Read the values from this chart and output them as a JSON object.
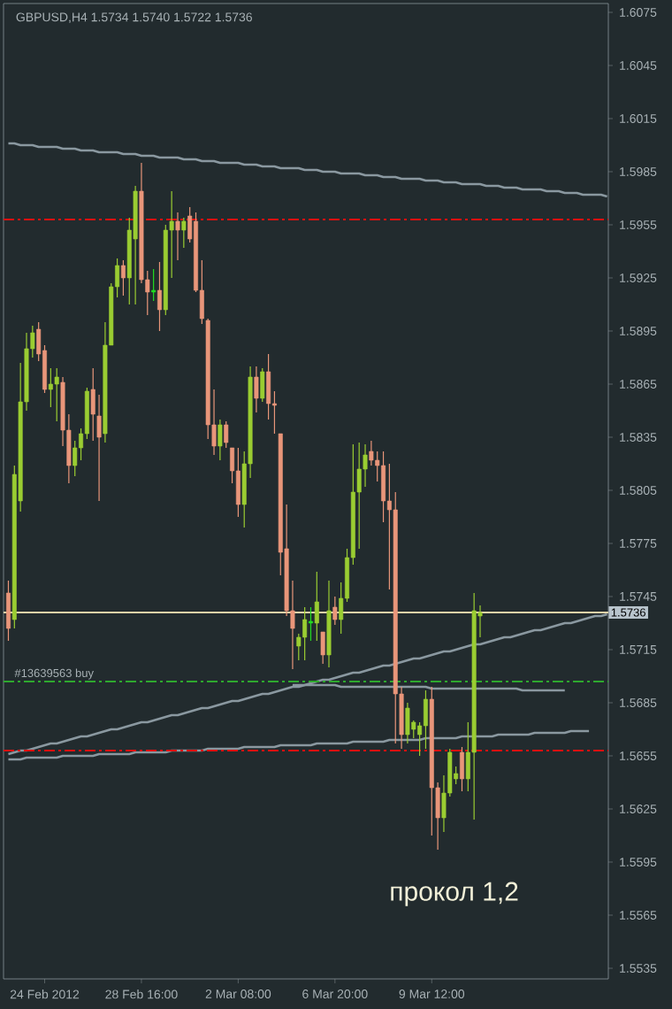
{
  "chart_data": {
    "type": "candlestick",
    "title": "GBPUSD,H4  1.5734 1.5740 1.5722 1.5736",
    "categories": [
      null,
      null,
      null,
      null,
      null,
      null,
      "24 Feb 2012",
      null,
      null,
      null,
      null,
      null,
      null,
      null,
      null,
      null,
      null,
      null,
      null,
      null,
      null,
      null,
      "28 Feb 16:00",
      null,
      null,
      null,
      null,
      null,
      null,
      null,
      null,
      null,
      null,
      null,
      null,
      null,
      null,
      null,
      "2 Mar 08:00",
      null,
      null,
      null,
      null,
      null,
      null,
      null,
      null,
      null,
      null,
      null,
      null,
      null,
      null,
      null,
      "6 Mar 20:00",
      null,
      null,
      null,
      null,
      null,
      null,
      null,
      null,
      null,
      null,
      null,
      null,
      null,
      null,
      null,
      "9 Mar 12:00",
      null,
      null,
      null,
      null,
      null,
      null,
      null,
      null,
      null,
      null,
      null,
      null,
      null,
      null,
      null,
      null,
      null,
      null,
      null,
      null,
      null,
      null,
      null,
      null,
      null,
      null,
      null,
      null,
      null
    ],
    "ohlc": [
      [
        1.5747,
        1.5754,
        1.572,
        1.5727
      ],
      [
        1.5732,
        1.5819,
        1.5727,
        1.5814
      ],
      [
        1.5799,
        1.5877,
        1.5793,
        1.5855
      ],
      [
        1.5855,
        1.5894,
        1.585,
        1.5885
      ],
      [
        1.5885,
        1.5898,
        1.588,
        1.5894
      ],
      [
        1.5896,
        1.59,
        1.5878,
        1.5882
      ],
      [
        1.5884,
        1.5887,
        1.586,
        1.5862
      ],
      [
        1.5862,
        1.5874,
        1.5852,
        1.5865
      ],
      [
        1.5865,
        1.5874,
        1.5844,
        1.5869
      ],
      [
        1.5866,
        1.5869,
        1.583,
        1.5839
      ],
      [
        1.5839,
        1.5848,
        1.5809,
        1.5819
      ],
      [
        1.5819,
        1.5833,
        1.5813,
        1.5829
      ],
      [
        1.5829,
        1.584,
        1.5822,
        1.5837
      ],
      [
        1.5837,
        1.5863,
        1.5834,
        1.5861
      ],
      [
        1.5862,
        1.5874,
        1.5833,
        1.5848
      ],
      [
        1.5847,
        1.5859,
        1.5799,
        1.5835
      ],
      [
        1.5837,
        1.59,
        1.5832,
        1.5887
      ],
      [
        1.5887,
        1.5922,
        1.5887,
        1.592
      ],
      [
        1.592,
        1.5936,
        1.5914,
        1.5932
      ],
      [
        1.5932,
        1.5935,
        1.5915,
        1.5925
      ],
      [
        1.5925,
        1.5959,
        1.591,
        1.5952
      ],
      [
        1.5947,
        1.5977,
        1.591,
        1.5974
      ],
      [
        1.5974,
        1.599,
        1.5922,
        1.5924
      ],
      [
        1.5924,
        1.5929,
        1.5904,
        1.5917
      ],
      [
        1.5917,
        1.593,
        1.5912,
        1.5918
      ],
      [
        1.5918,
        1.5934,
        1.5895,
        1.5907
      ],
      [
        1.5907,
        1.5955,
        1.5904,
        1.5952
      ],
      [
        1.5952,
        1.5974,
        1.5925,
        1.5957
      ],
      [
        1.5957,
        1.5962,
        1.5935,
        1.5952
      ],
      [
        1.5952,
        1.5959,
        1.5942,
        1.5957
      ],
      [
        1.596,
        1.5965,
        1.5945,
        1.5947
      ],
      [
        1.5957,
        1.5962,
        1.5917,
        1.5918
      ],
      [
        1.5918,
        1.5935,
        1.5899,
        1.5902
      ],
      [
        1.5901,
        1.5902,
        1.5834,
        1.5842
      ],
      [
        1.5842,
        1.5862,
        1.5825,
        1.583
      ],
      [
        1.583,
        1.5845,
        1.5822,
        1.5842
      ],
      [
        1.5842,
        1.5844,
        1.5829,
        1.5832
      ],
      [
        1.5829,
        1.5829,
        1.5809,
        1.5816
      ],
      [
        1.5816,
        1.5829,
        1.579,
        1.5797
      ],
      [
        1.5797,
        1.5827,
        1.5784,
        1.582
      ],
      [
        1.582,
        1.5875,
        1.5812,
        1.5869
      ],
      [
        1.5869,
        1.5875,
        1.5849,
        1.5857
      ],
      [
        1.5857,
        1.5874,
        1.5855,
        1.5872
      ],
      [
        1.5872,
        1.5882,
        1.5845,
        1.5854
      ],
      [
        1.5854,
        1.5861,
        1.5837,
        1.5853
      ],
      [
        1.5837,
        1.5837,
        1.5757,
        1.577
      ],
      [
        1.5772,
        1.5797,
        1.5734,
        1.5737
      ],
      [
        1.5737,
        1.5754,
        1.5704,
        1.5727
      ],
      [
        1.5717,
        1.5724,
        1.5709,
        1.5722
      ],
      [
        1.5722,
        1.5739,
        1.5709,
        1.5732
      ],
      [
        1.573,
        1.5739,
        1.572,
        1.5731
      ],
      [
        1.573,
        1.5759,
        1.572,
        1.5742
      ],
      [
        1.5725,
        1.5725,
        1.5707,
        1.5712
      ],
      [
        1.5712,
        1.5754,
        1.5705,
        1.5737
      ],
      [
        1.5739,
        1.5745,
        1.5729,
        1.5732
      ],
      [
        1.5732,
        1.5753,
        1.5724,
        1.5744
      ],
      [
        1.5744,
        1.5772,
        1.5742,
        1.5767
      ],
      [
        1.5767,
        1.5831,
        1.5763,
        1.5804
      ],
      [
        1.5804,
        1.5832,
        1.5772,
        1.5817
      ],
      [
        1.5817,
        1.5831,
        1.5807,
        1.5825
      ],
      [
        1.5827,
        1.5833,
        1.5819,
        1.5822
      ],
      [
        1.5822,
        1.5827,
        1.581,
        1.5819
      ],
      [
        1.5819,
        1.5827,
        1.5787,
        1.5799
      ],
      [
        1.5799,
        1.582,
        1.5749,
        1.5794
      ],
      [
        1.5794,
        1.5804,
        1.5662,
        1.569
      ],
      [
        1.569,
        1.5694,
        1.5659,
        1.5667
      ],
      [
        1.5667,
        1.5685,
        1.5662,
        1.5682
      ],
      [
        1.567,
        1.5675,
        1.5665,
        1.5674
      ],
      [
        1.5667,
        1.5674,
        1.5655,
        1.5672
      ],
      [
        1.5672,
        1.5692,
        1.5659,
        1.5687
      ],
      [
        1.5687,
        1.5694,
        1.561,
        1.5637
      ],
      [
        1.5637,
        1.564,
        1.5602,
        1.562
      ],
      [
        1.562,
        1.5644,
        1.5612,
        1.5634
      ],
      [
        1.5634,
        1.5659,
        1.5632,
        1.5657
      ],
      [
        1.5642,
        1.5649,
        1.5639,
        1.5645
      ],
      [
        1.5657,
        1.566,
        1.5635,
        1.5642
      ],
      [
        1.5642,
        1.5674,
        1.5635,
        1.5657
      ],
      [
        1.5657,
        1.5747,
        1.5619,
        1.5737
      ],
      [
        1.5734,
        1.574,
        1.5722,
        1.5736
      ],
      null,
      null,
      null,
      null,
      null,
      null,
      null,
      null,
      null,
      null,
      null,
      null,
      null,
      null,
      null,
      null,
      null,
      null,
      null,
      null,
      null
    ],
    "colors": [
      "#e9967a",
      "#9acd32",
      "#9acd32",
      "#9acd32",
      "#9acd32",
      "#e9967a",
      "#e9967a",
      "#9acd32",
      "#9acd32",
      "#e9967a",
      "#e9967a",
      "#9acd32",
      "#9acd32",
      "#9acd32",
      "#e9967a",
      "#e9967a",
      "#9acd32",
      "#9acd32",
      "#9acd32",
      "#e9967a",
      "#9acd32",
      "#9acd32",
      "#e9967a",
      "#e9967a",
      "#22dd22",
      "#e9967a",
      "#9acd32",
      "#9acd32",
      "#e9967a",
      "#9acd32",
      "#e9967a",
      "#e9967a",
      "#e9967a",
      "#e9967a",
      "#e9967a",
      "#9acd32",
      "#e9967a",
      "#e9967a",
      "#e9967a",
      "#9acd32",
      "#9acd32",
      "#e9967a",
      "#9acd32",
      "#e9967a",
      "#e9967a",
      "#e9967a",
      "#e9967a",
      "#e9967a",
      "#9acd32",
      "#9acd32",
      "#22dd22",
      "#9acd32",
      "#e9967a",
      "#9acd32",
      "#e9967a",
      "#9acd32",
      "#9acd32",
      "#9acd32",
      "#9acd32",
      "#9acd32",
      "#e9967a",
      "#e9967a",
      "#e9967a",
      "#e9967a",
      "#e9967a",
      "#e9967a",
      "#9acd32",
      "#9acd32",
      "#9acd32",
      "#9acd32",
      "#e9967a",
      "#e9967a",
      "#9acd32",
      "#9acd32",
      "#9acd32",
      "#e9967a",
      "#9acd32",
      "#9acd32",
      "#9acd32",
      null,
      null,
      null,
      null,
      null,
      null,
      null,
      null,
      null,
      null,
      null,
      null,
      null,
      null,
      null,
      null,
      null,
      null,
      null,
      null,
      null
    ],
    "series": [
      {
        "type": "line",
        "color": "#8a98a0",
        "values": [
          1.6001,
          1.6001,
          1.6,
          1.6,
          1.6,
          1.5999,
          1.5999,
          1.5999,
          1.5999,
          1.5998,
          1.5998,
          1.5998,
          1.5997,
          1.5997,
          1.5997,
          1.5996,
          1.5996,
          1.5996,
          1.5996,
          1.5995,
          1.5995,
          1.5995,
          1.5994,
          1.5994,
          1.5994,
          1.5993,
          1.5993,
          1.5993,
          1.5993,
          1.5992,
          1.5992,
          1.5992,
          1.5991,
          1.5991,
          1.5991,
          1.599,
          1.599,
          1.599,
          1.599,
          1.5989,
          1.5989,
          1.5989,
          1.5988,
          1.5988,
          1.5988,
          1.5987,
          1.5987,
          1.5987,
          1.5987,
          1.5986,
          1.5986,
          1.5986,
          1.5985,
          1.5985,
          1.5985,
          1.5984,
          1.5984,
          1.5984,
          1.5984,
          1.5983,
          1.5983,
          1.5983,
          1.5982,
          1.5982,
          1.5982,
          1.5981,
          1.5981,
          1.5981,
          1.5981,
          1.598,
          1.598,
          1.598,
          1.5979,
          1.5979,
          1.5979,
          1.5978,
          1.5978,
          1.5978,
          1.5978,
          1.5977,
          1.5977,
          1.5977,
          1.5976,
          1.5976,
          1.5976,
          1.5975,
          1.5975,
          1.5975,
          1.5975,
          1.5974,
          1.5974,
          1.5974,
          1.5973,
          1.5973,
          1.5973,
          1.5972,
          1.5972,
          1.5972,
          1.5972,
          1.5971
        ]
      },
      {
        "type": "line",
        "color": "#8a98a0",
        "values": [
          1.5656,
          1.5657,
          1.5658,
          1.5658,
          1.5659,
          1.566,
          1.5661,
          1.5662,
          1.5662,
          1.5663,
          1.5664,
          1.5665,
          1.5666,
          1.5666,
          1.5667,
          1.5668,
          1.5669,
          1.567,
          1.567,
          1.5671,
          1.5672,
          1.5673,
          1.5674,
          1.5674,
          1.5675,
          1.5676,
          1.5677,
          1.5678,
          1.5678,
          1.5679,
          1.568,
          1.5681,
          1.5682,
          1.5682,
          1.5683,
          1.5684,
          1.5685,
          1.5686,
          1.5686,
          1.5687,
          1.5688,
          1.5689,
          1.569,
          1.569,
          1.5691,
          1.5692,
          1.5693,
          1.5694,
          1.5694,
          1.5695,
          1.5696,
          1.5697,
          1.5698,
          1.5698,
          1.5699,
          1.57,
          1.5701,
          1.5702,
          1.5702,
          1.5703,
          1.5704,
          1.5705,
          1.5706,
          1.5706,
          1.5707,
          1.5708,
          1.5709,
          1.571,
          1.571,
          1.5711,
          1.5712,
          1.5713,
          1.5714,
          1.5714,
          1.5715,
          1.5716,
          1.5717,
          1.5718,
          1.5718,
          1.5719,
          1.572,
          1.5721,
          1.5722,
          1.5722,
          1.5723,
          1.5724,
          1.5725,
          1.5726,
          1.5726,
          1.5727,
          1.5728,
          1.5729,
          1.573,
          1.573,
          1.5731,
          1.5732,
          1.5733,
          1.5734,
          1.5734,
          1.5735
        ]
      },
      {
        "type": "line",
        "color": "#8a98a0",
        "values": [
          1.5653,
          1.5653,
          1.5653,
          1.5654,
          1.5654,
          1.5654,
          1.5654,
          1.5654,
          1.5654,
          1.5655,
          1.5655,
          1.5655,
          1.5655,
          1.5655,
          1.5655,
          1.5656,
          1.5656,
          1.5656,
          1.5656,
          1.5656,
          1.5656,
          1.5657,
          1.5657,
          1.5657,
          1.5657,
          1.5657,
          1.5657,
          1.5658,
          1.5658,
          1.5658,
          1.5658,
          1.5658,
          1.5658,
          1.5659,
          1.5659,
          1.5659,
          1.5659,
          1.5659,
          1.5659,
          1.566,
          1.566,
          1.566,
          1.566,
          1.566,
          1.566,
          1.5661,
          1.5661,
          1.5661,
          1.5661,
          1.5661,
          1.5661,
          1.5662,
          1.5662,
          1.5662,
          1.5662,
          1.5662,
          1.5662,
          1.5663,
          1.5663,
          1.5663,
          1.5663,
          1.5663,
          1.5663,
          1.5664,
          1.5664,
          1.5664,
          1.5664,
          1.5664,
          1.5664,
          1.5665,
          1.5665,
          1.5665,
          1.5665,
          1.5665,
          1.5665,
          1.5666,
          1.5666,
          1.5666,
          1.5666,
          1.5666,
          1.5666,
          1.5667,
          1.5667,
          1.5667,
          1.5667,
          1.5667,
          1.5667,
          1.5668,
          1.5668,
          1.5668,
          1.5668,
          1.5668,
          1.5668,
          1.5669,
          1.5669,
          1.5669,
          1.5669,
          null,
          null,
          null
        ]
      },
      {
        "type": "line",
        "color": "#8a98a0",
        "values": [
          null,
          null,
          null,
          null,
          null,
          null,
          null,
          null,
          null,
          null,
          null,
          null,
          null,
          null,
          null,
          null,
          null,
          null,
          null,
          null,
          null,
          null,
          null,
          null,
          null,
          null,
          null,
          null,
          null,
          null,
          null,
          null,
          null,
          null,
          null,
          null,
          null,
          null,
          null,
          null,
          null,
          null,
          null,
          null,
          null,
          null,
          null,
          1.5695,
          1.5695,
          1.5695,
          1.5695,
          1.5695,
          1.5695,
          1.5695,
          1.5695,
          1.5694,
          1.5694,
          1.5694,
          1.5694,
          1.5694,
          1.5694,
          1.5694,
          1.5694,
          1.5694,
          1.5694,
          1.5694,
          1.5694,
          1.5694,
          1.5694,
          1.5694,
          1.5693,
          1.5693,
          1.5693,
          1.5693,
          1.5693,
          1.5693,
          1.5693,
          1.5693,
          1.5693,
          1.5693,
          1.5693,
          1.5693,
          1.5693,
          1.5693,
          1.5693,
          1.5692,
          1.5692,
          1.5692,
          1.5692,
          1.5692,
          1.5692,
          1.5692,
          1.5692,
          null,
          null,
          null,
          null,
          null,
          null,
          null
        ]
      }
    ],
    "ref_lines": [
      {
        "axis": "y",
        "value": 1.5958,
        "color": "#e01010",
        "line_style": "dashed"
      },
      {
        "axis": "y",
        "value": 1.5658,
        "color": "#e01010",
        "line_style": "dashed"
      },
      {
        "axis": "y",
        "value": 1.5697,
        "color": "#2ea82e",
        "line_style": "dashed",
        "label": "#13639563 buy"
      },
      {
        "axis": "y",
        "value": 1.5736,
        "color": "#e8d2a8",
        "line_style": "solid",
        "label": "1.5736"
      }
    ],
    "ylim": [
      1.5529,
      1.608
    ],
    "yticks": [
      1.6075,
      1.6045,
      1.6015,
      1.5985,
      1.5955,
      1.5925,
      1.5895,
      1.5865,
      1.5835,
      1.5805,
      1.5775,
      1.5745,
      1.5715,
      1.5685,
      1.5655,
      1.5625,
      1.5595,
      1.5565,
      1.5535
    ],
    "annotations": [
      "прокол 1,2"
    ]
  }
}
